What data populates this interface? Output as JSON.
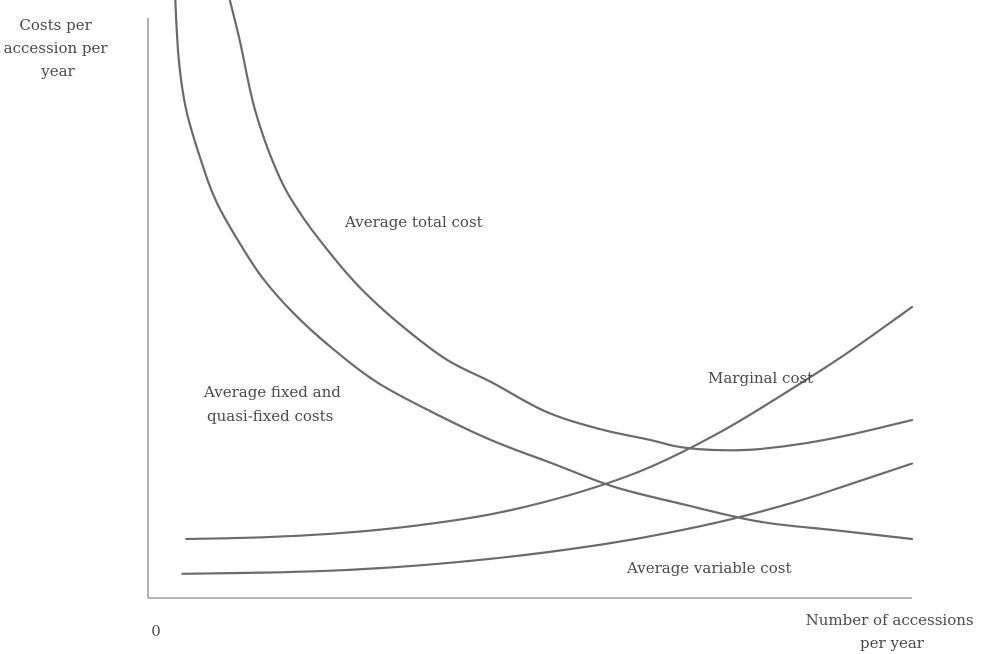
{
  "chart_data": {
    "type": "line",
    "title": "",
    "ylabel_lines": [
      "Costs per",
      "accession per",
      "year"
    ],
    "xlabel_lines": [
      "Number of accessions",
      "per year"
    ],
    "origin_label": "0",
    "xlim": [
      0,
      100
    ],
    "ylim": [
      0,
      100
    ],
    "x_ticks_shown": false,
    "y_ticks_shown": false,
    "grid": false,
    "legend": "none (curves labelled directly)",
    "series": [
      {
        "name": "Average total cost",
        "label_lines": [
          "Average total cost"
        ],
        "x": [
          10.3,
          12,
          14,
          17,
          20,
          24,
          28,
          33,
          39,
          45,
          52,
          59,
          66,
          69,
          72,
          76,
          80,
          86,
          92,
          100
        ],
        "y": [
          100,
          91,
          79,
          68,
          61,
          54,
          48,
          42,
          36,
          32,
          27,
          24,
          22,
          21,
          20.5,
          20.3,
          20.5,
          21.5,
          23,
          25.5
        ]
      },
      {
        "name": "Average fixed and quasi-fixed costs",
        "label_lines": [
          "Average fixed and",
          "quasi-fixed costs"
        ],
        "x": [
          3.5,
          4,
          5,
          7,
          9,
          12,
          15,
          19,
          24,
          30,
          37,
          45,
          53,
          61,
          70,
          80,
          90,
          100
        ],
        "y": [
          100,
          88,
          79,
          70,
          63,
          56,
          50,
          44,
          38,
          32,
          27,
          22,
          18,
          14,
          11,
          8,
          6.5,
          5
        ]
      },
      {
        "name": "Marginal cost",
        "label_lines": [
          "Marginal cost"
        ],
        "x": [
          5,
          15,
          25,
          35,
          45,
          55,
          65,
          75,
          85,
          92,
          100
        ],
        "y": [
          5,
          5.3,
          6,
          7.3,
          9.3,
          12.5,
          17,
          23.5,
          31.5,
          37.5,
          45
        ]
      },
      {
        "name": "Average variable cost",
        "label_lines": [
          "Average variable cost"
        ],
        "x": [
          4.5,
          15,
          25,
          35,
          45,
          55,
          65,
          75,
          85,
          92,
          100
        ],
        "y": [
          -1,
          -0.8,
          -0.4,
          0.4,
          1.6,
          3.2,
          5.3,
          8,
          11.5,
          14.5,
          18
        ]
      }
    ]
  }
}
